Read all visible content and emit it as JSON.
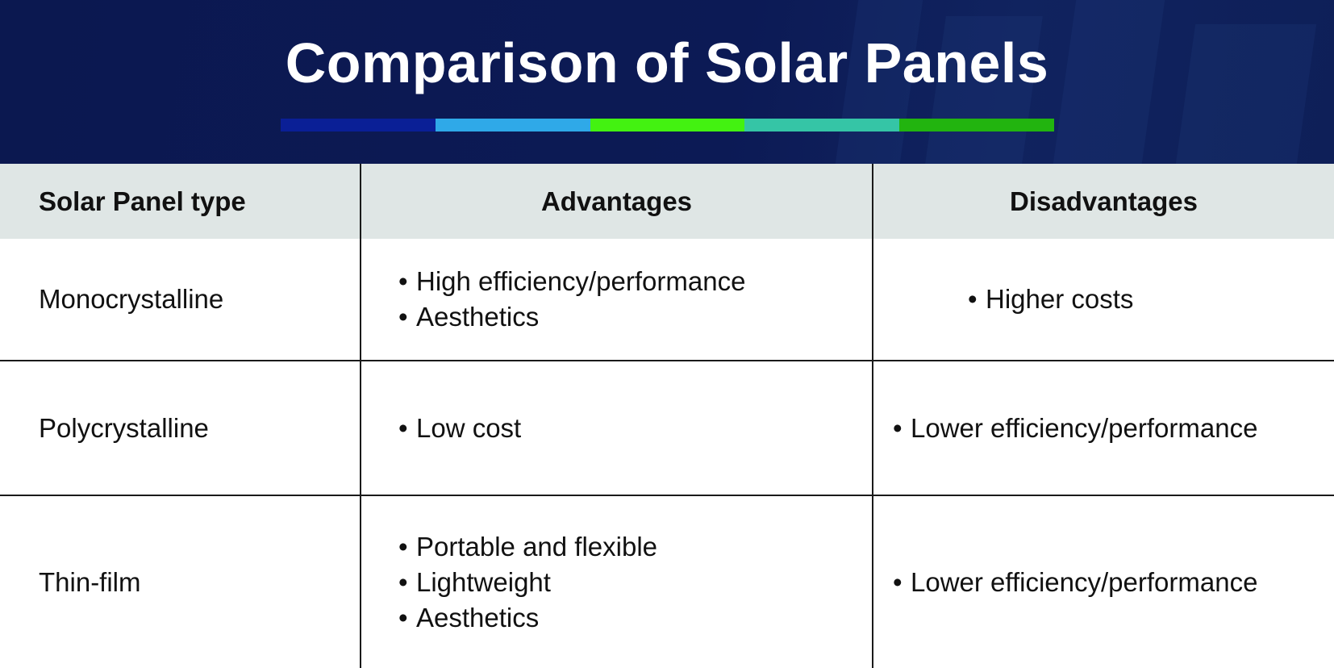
{
  "title": "Comparison of Solar Panels",
  "color_bar": [
    "#0a1f96",
    "#2fa9e8",
    "#43f211",
    "#35c5a6",
    "#22b40f"
  ],
  "table": {
    "headers": [
      "Solar Panel type",
      "Advantages",
      "Disadvantages"
    ],
    "rows": [
      {
        "type": "Monocrystalline",
        "advantages": [
          "High efficiency/performance",
          "Aesthetics"
        ],
        "disadvantages": [
          "Higher costs"
        ]
      },
      {
        "type": "Polycrystalline",
        "advantages": [
          "Low cost"
        ],
        "disadvantages": [
          "Lower efficiency/performance"
        ]
      },
      {
        "type": "Thin-film",
        "advantages": [
          "Portable and flexible",
          "Lightweight",
          "Aesthetics"
        ],
        "disadvantages": [
          "Lower efficiency/performance"
        ]
      }
    ]
  }
}
